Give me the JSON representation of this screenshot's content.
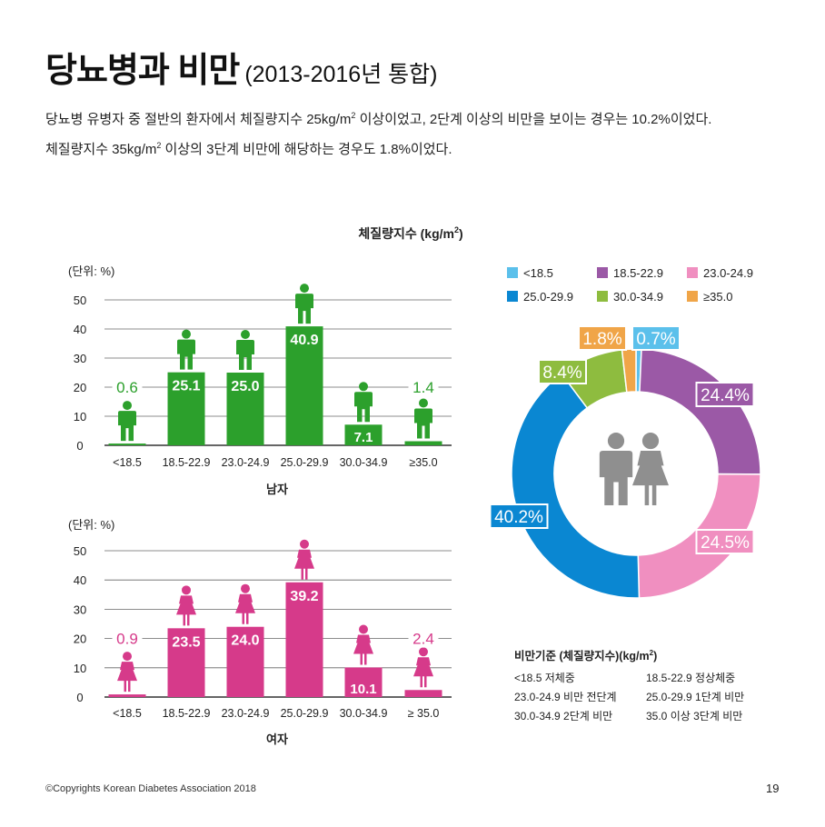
{
  "header": {
    "title": "당뇨병과 비만",
    "subtitle": "(2013-2016년 통합)",
    "desc_line1_a": "당뇨병 유병자 중 절반의 환자에서 체질량지수 25kg/m",
    "desc_line1_sup": "2",
    "desc_line1_b": " 이상이었고, 2단계 이상의 비만을 보이는 경우는 10.2%이었다.",
    "desc_line2_a": "체질량지수 35kg/m",
    "desc_line2_sup": "2",
    "desc_line2_b": " 이상의 3단계 비만에 해당하는 경우도 1.8%이었다."
  },
  "colors": {
    "male": "#2ca02c",
    "female": "#d63a8a",
    "person_grey": "#8f8f8f",
    "gridline": "#555555"
  },
  "bmi_heading": {
    "text": "체질량지수 (kg/m",
    "sup": "2",
    "close": ")"
  },
  "legend": [
    {
      "label": "<18.5",
      "color": "#5bc0eb"
    },
    {
      "label": "18.5-22.9",
      "color": "#9b59a6"
    },
    {
      "label": "23.0-24.9",
      "color": "#f08fc0"
    },
    {
      "label": "25.0-29.9",
      "color": "#0a87d2"
    },
    {
      "label": "30.0-34.9",
      "color": "#8ebc3f"
    },
    {
      "label": "≥35.0",
      "color": "#f0a548"
    }
  ],
  "criteria": {
    "title": "비만기준 (체질량지수)(kg/m",
    "title_sup": "2",
    "title_close": ")",
    "items": [
      "<18.5 저체중",
      "18.5-22.9 정상체중",
      "23.0-24.9 비만 전단계",
      "25.0-29.9 1단계 비만",
      "30.0-34.9 2단계 비만",
      "35.0 이상 3단계 비만"
    ]
  },
  "footer": {
    "copyright": "©Copyrights Korean Diabetes Association 2018",
    "page_number": "19"
  },
  "chart_data": [
    {
      "type": "bar",
      "unit_label": "(단위: %)",
      "xlabel": "남자",
      "ylim": [
        0,
        50
      ],
      "yticks": [
        "0",
        "10",
        "20",
        "30",
        "40",
        "50"
      ],
      "categories": [
        "<18.5",
        "18.5-22.9",
        "23.0-24.9",
        "25.0-29.9",
        "30.0-34.9",
        "≥35.0"
      ],
      "values": [
        0.6,
        25.1,
        25.0,
        40.9,
        7.1,
        1.4
      ],
      "value_labels": [
        "0.6",
        "25.1",
        "25.0",
        "40.9",
        "7.1",
        "1.4"
      ],
      "color": "#2ca02c",
      "grid": true
    },
    {
      "type": "bar",
      "unit_label": "(단위: %)",
      "xlabel": "여자",
      "ylim": [
        0,
        50
      ],
      "yticks": [
        "0",
        "10",
        "20",
        "30",
        "40",
        "50"
      ],
      "categories": [
        "<18.5",
        "18.5-22.9",
        "23.0-24.9",
        "25.0-29.9",
        "30.0-34.9",
        "≥ 35.0"
      ],
      "values": [
        0.9,
        23.5,
        24.0,
        39.2,
        10.1,
        2.4
      ],
      "value_labels": [
        "0.9",
        "23.5",
        "24.0",
        "39.2",
        "10.1",
        "2.4"
      ],
      "color": "#d63a8a",
      "grid": true
    },
    {
      "type": "pie",
      "donut": true,
      "categories": [
        "<18.5",
        "18.5-22.9",
        "23.0-24.9",
        "25.0-29.9",
        "30.0-34.9",
        "≥35.0"
      ],
      "values": [
        0.7,
        24.4,
        24.5,
        40.2,
        8.4,
        1.8
      ],
      "value_labels": [
        "0.7%",
        "24.4%",
        "24.5%",
        "40.2%",
        "8.4%",
        "1.8%"
      ],
      "colors": [
        "#5bc0eb",
        "#9b59a6",
        "#f08fc0",
        "#0a87d2",
        "#8ebc3f",
        "#f0a548"
      ]
    }
  ]
}
